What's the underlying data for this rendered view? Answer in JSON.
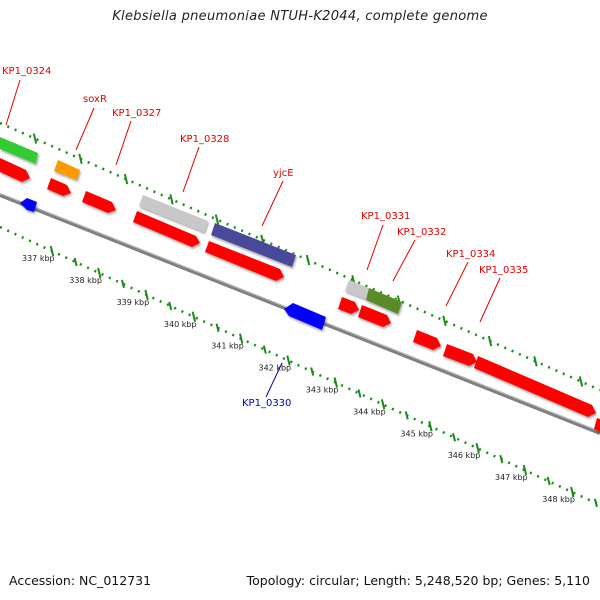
{
  "title": "Klebsiella pneumoniae NTUH-K2044, complete genome",
  "footer": {
    "accession": "Accession: NC_012731",
    "summary": "Topology: circular; Length: 5,248,520 bp; Genes: 5,110"
  },
  "colors": {
    "red_gene": "#ff0000",
    "blue_gene": "#0000ff",
    "green_gene": "#33cc33",
    "orange_gene": "#ff9900",
    "gray_gene": "#c8c8c8",
    "slate_gene": "#4a4a9a",
    "olive_gene": "#5a8a2a",
    "dotted_track": "#1a8a1a",
    "backbone": "#808080",
    "label_red": "#e00000",
    "label_blue": "#0000b0"
  },
  "scale_labels": [
    "337 kbp",
    "338 kbp",
    "339 kbp",
    "340 kbp",
    "341 kbp",
    "342 kbp",
    "343 kbp",
    "344 kbp",
    "345 kbp",
    "346 kbp",
    "347 kbp",
    "348 kbp"
  ],
  "gene_labels_top": [
    "KP1_0324",
    "soxR",
    "KP1_0327",
    "KP1_0328",
    "yjcE",
    "KP1_0331",
    "KP1_0332",
    "KP1_0334",
    "KP1_0335"
  ],
  "gene_labels_bottom": [
    "KP1_0330"
  ]
}
